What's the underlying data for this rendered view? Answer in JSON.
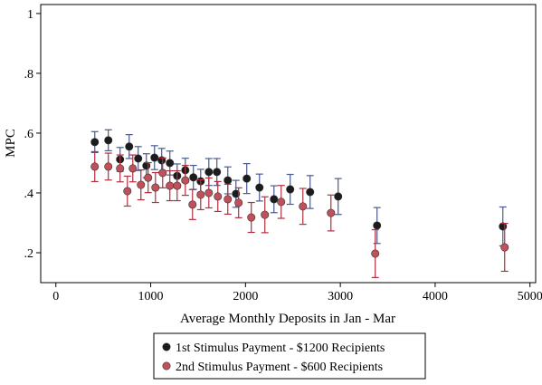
{
  "chart_data": {
    "type": "scatter",
    "x_label": "Average Monthly Deposits in Jan - Mar",
    "y_label": "MPC",
    "xlim": [
      -160,
      5060
    ],
    "ylim": [
      0.1,
      1.03
    ],
    "xticks": [
      0,
      1000,
      2000,
      3000,
      4000,
      5000
    ],
    "yticks": [
      {
        "value": 0.2,
        "label": ".2"
      },
      {
        "value": 0.4,
        "label": ".4"
      },
      {
        "value": 0.6,
        "label": ".6"
      },
      {
        "value": 0.8,
        "label": ".8"
      },
      1
    ],
    "series": [
      {
        "name": "1st Stimulus Payment - $1200 Recipients",
        "color": "#1c1c1c",
        "error_color": "#4a5a8c",
        "x": [
          410,
          553,
          677,
          773,
          868,
          954,
          1040,
          1116,
          1202,
          1279,
          1365,
          1450,
          1527,
          1613,
          1698,
          1813,
          1899,
          2013,
          2147,
          2300,
          2471,
          2681,
          2977,
          3387,
          4714
        ],
        "values": [
          0.57,
          0.576,
          0.512,
          0.555,
          0.515,
          0.491,
          0.518,
          0.509,
          0.5,
          0.457,
          0.476,
          0.452,
          0.439,
          0.47,
          0.47,
          0.442,
          0.397,
          0.448,
          0.418,
          0.379,
          0.412,
          0.403,
          0.388,
          0.291,
          0.288
        ],
        "errors": [
          0.035,
          0.035,
          0.04,
          0.04,
          0.04,
          0.04,
          0.04,
          0.04,
          0.04,
          0.04,
          0.04,
          0.04,
          0.04,
          0.045,
          0.045,
          0.045,
          0.045,
          0.05,
          0.045,
          0.045,
          0.05,
          0.055,
          0.06,
          0.06,
          0.065
        ]
      },
      {
        "name": "2nd Stimulus Payment - $600 Recipients",
        "color": "#c0505a",
        "error_color": "#b03040",
        "x": [
          410,
          553,
          677,
          754,
          811,
          897,
          973,
          1050,
          1126,
          1202,
          1279,
          1365,
          1441,
          1527,
          1613,
          1708,
          1813,
          1927,
          2061,
          2204,
          2376,
          2605,
          2901,
          3368,
          4733
        ],
        "values": [
          0.488,
          0.488,
          0.482,
          0.406,
          0.482,
          0.427,
          0.451,
          0.418,
          0.467,
          0.424,
          0.424,
          0.442,
          0.361,
          0.394,
          0.4,
          0.388,
          0.379,
          0.367,
          0.318,
          0.327,
          0.37,
          0.355,
          0.333,
          0.197,
          0.218
        ],
        "errors": [
          0.05,
          0.045,
          0.045,
          0.05,
          0.045,
          0.05,
          0.05,
          0.05,
          0.05,
          0.05,
          0.05,
          0.05,
          0.05,
          0.05,
          0.05,
          0.05,
          0.05,
          0.05,
          0.05,
          0.06,
          0.055,
          0.06,
          0.06,
          0.08,
          0.08
        ]
      }
    ]
  }
}
